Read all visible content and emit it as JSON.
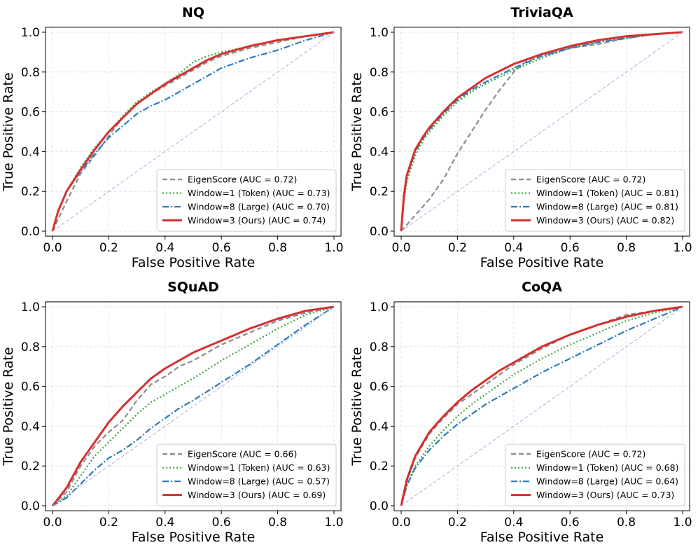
{
  "figure": {
    "xlabel": "False Positive Rate",
    "ylabel": "True Positive Rate"
  },
  "style": {
    "colors": {
      "eigenscore": "#8c8c8c",
      "window1": "#3aa83a",
      "window8": "#2b7bb9",
      "window3": "#d62f2f",
      "chance": "#a7a2e0",
      "grid": "#dcdcdc"
    }
  },
  "chart_data": [
    {
      "type": "line",
      "title": "NQ",
      "xlabel": "False Positive Rate",
      "ylabel": "True Positive Rate",
      "xlim": [
        0,
        1
      ],
      "ylim": [
        0,
        1
      ],
      "xticks": [
        "0.0",
        "0.2",
        "0.4",
        "0.6",
        "0.8",
        "1.0"
      ],
      "yticks": [
        "0.0",
        "0.2",
        "0.4",
        "0.6",
        "0.8",
        "1.0"
      ],
      "grid": true,
      "legend_position": "lower-right",
      "series": [
        {
          "key": "eigenscore",
          "name": "EigenScore (AUC = 0.72)",
          "style": "dashed",
          "x": [
            0,
            0.02,
            0.05,
            0.1,
            0.15,
            0.2,
            0.25,
            0.3,
            0.35,
            0.4,
            0.45,
            0.5,
            0.55,
            0.6,
            0.7,
            0.8,
            0.9,
            1.0
          ],
          "y": [
            0,
            0.06,
            0.15,
            0.29,
            0.38,
            0.48,
            0.57,
            0.64,
            0.69,
            0.73,
            0.77,
            0.81,
            0.85,
            0.88,
            0.92,
            0.95,
            0.98,
            1.0
          ]
        },
        {
          "key": "window1",
          "name": "Window=1 (Token) (AUC = 0.73)",
          "style": "dotted",
          "x": [
            0,
            0.02,
            0.05,
            0.1,
            0.15,
            0.2,
            0.25,
            0.3,
            0.35,
            0.4,
            0.45,
            0.5,
            0.55,
            0.6,
            0.7,
            0.8,
            0.9,
            1.0
          ],
          "y": [
            0,
            0.1,
            0.2,
            0.32,
            0.42,
            0.5,
            0.58,
            0.65,
            0.7,
            0.74,
            0.79,
            0.85,
            0.88,
            0.9,
            0.93,
            0.96,
            0.98,
            1.0
          ]
        },
        {
          "key": "window8",
          "name": "Window=8 (Large) (AUC = 0.70)",
          "style": "dashdot",
          "x": [
            0,
            0.02,
            0.05,
            0.1,
            0.15,
            0.2,
            0.25,
            0.3,
            0.35,
            0.4,
            0.45,
            0.5,
            0.55,
            0.6,
            0.7,
            0.8,
            0.9,
            1.0
          ],
          "y": [
            0,
            0.1,
            0.2,
            0.3,
            0.39,
            0.47,
            0.53,
            0.59,
            0.63,
            0.66,
            0.7,
            0.74,
            0.78,
            0.82,
            0.87,
            0.91,
            0.96,
            1.0
          ]
        },
        {
          "key": "window3",
          "name": "Window=3 (Ours) (AUC = 0.74)",
          "style": "solid",
          "x": [
            0,
            0.02,
            0.05,
            0.1,
            0.15,
            0.2,
            0.25,
            0.3,
            0.35,
            0.4,
            0.45,
            0.5,
            0.55,
            0.6,
            0.7,
            0.8,
            0.9,
            1.0
          ],
          "y": [
            0,
            0.1,
            0.2,
            0.31,
            0.41,
            0.5,
            0.57,
            0.64,
            0.69,
            0.74,
            0.78,
            0.82,
            0.86,
            0.89,
            0.93,
            0.96,
            0.98,
            1.0
          ]
        },
        {
          "key": "chance",
          "name": "",
          "style": "thin-dashed",
          "x": [
            0,
            1
          ],
          "y": [
            0,
            1
          ]
        }
      ]
    },
    {
      "type": "line",
      "title": "TriviaQA",
      "xlabel": "False Positive Rate",
      "ylabel": "True Positive Rate",
      "xlim": [
        0,
        1
      ],
      "ylim": [
        0,
        1
      ],
      "xticks": [
        "0.0",
        "0.2",
        "0.4",
        "0.6",
        "0.8",
        "1.0"
      ],
      "yticks": [
        "0.0",
        "0.2",
        "0.4",
        "0.6",
        "0.8",
        "1.0"
      ],
      "grid": true,
      "legend_position": "lower-right",
      "series": [
        {
          "key": "eigenscore",
          "name": "EigenScore (AUC = 0.72)",
          "style": "dashed",
          "x": [
            0,
            0.05,
            0.1,
            0.15,
            0.2,
            0.25,
            0.3,
            0.35,
            0.4,
            0.45,
            0.5,
            0.6,
            0.7,
            0.8,
            0.9,
            1.0
          ],
          "y": [
            0,
            0.08,
            0.16,
            0.26,
            0.39,
            0.5,
            0.61,
            0.71,
            0.8,
            0.86,
            0.88,
            0.92,
            0.94,
            0.97,
            0.99,
            1.0
          ]
        },
        {
          "key": "window1",
          "name": "Window=1 (Token) (AUC = 0.81)",
          "style": "dotted",
          "x": [
            0,
            0.01,
            0.02,
            0.05,
            0.08,
            0.1,
            0.15,
            0.2,
            0.25,
            0.3,
            0.4,
            0.5,
            0.6,
            0.7,
            0.8,
            0.9,
            1.0
          ],
          "y": [
            0,
            0.15,
            0.25,
            0.38,
            0.46,
            0.5,
            0.58,
            0.65,
            0.7,
            0.74,
            0.81,
            0.87,
            0.92,
            0.95,
            0.97,
            0.99,
            1.0
          ]
        },
        {
          "key": "window8",
          "name": "Window=8 (Large) (AUC = 0.81)",
          "style": "dashdot",
          "x": [
            0,
            0.01,
            0.02,
            0.05,
            0.08,
            0.1,
            0.15,
            0.2,
            0.25,
            0.3,
            0.4,
            0.5,
            0.6,
            0.7,
            0.8,
            0.9,
            1.0
          ],
          "y": [
            0,
            0.17,
            0.27,
            0.4,
            0.47,
            0.51,
            0.59,
            0.66,
            0.71,
            0.75,
            0.82,
            0.88,
            0.92,
            0.95,
            0.97,
            0.99,
            1.0
          ]
        },
        {
          "key": "window3",
          "name": "Window=3 (Ours) (AUC = 0.82)",
          "style": "solid",
          "x": [
            0,
            0.01,
            0.02,
            0.05,
            0.08,
            0.1,
            0.15,
            0.2,
            0.25,
            0.3,
            0.4,
            0.5,
            0.6,
            0.7,
            0.8,
            0.9,
            1.0
          ],
          "y": [
            0,
            0.18,
            0.28,
            0.41,
            0.48,
            0.52,
            0.6,
            0.67,
            0.72,
            0.77,
            0.84,
            0.89,
            0.93,
            0.96,
            0.98,
            0.99,
            1.0
          ]
        },
        {
          "key": "chance",
          "name": "",
          "style": "thin-dashed",
          "x": [
            0,
            1
          ],
          "y": [
            0,
            1
          ]
        }
      ]
    },
    {
      "type": "line",
      "title": "SQuAD",
      "xlabel": "False Positive Rate",
      "ylabel": "True Positive Rate",
      "xlim": [
        0,
        1
      ],
      "ylim": [
        0,
        1
      ],
      "xticks": [
        "0.0",
        "0.2",
        "0.4",
        "0.6",
        "0.8",
        "1.0"
      ],
      "yticks": [
        "0.0",
        "0.2",
        "0.4",
        "0.6",
        "0.8",
        "1.0"
      ],
      "grid": true,
      "legend_position": "lower-right",
      "series": [
        {
          "key": "eigenscore",
          "name": "EigenScore (AUC = 0.66)",
          "style": "dashed",
          "x": [
            0,
            0.05,
            0.1,
            0.15,
            0.2,
            0.25,
            0.3,
            0.35,
            0.4,
            0.45,
            0.5,
            0.6,
            0.7,
            0.8,
            0.9,
            1.0
          ],
          "y": [
            0,
            0.07,
            0.2,
            0.3,
            0.37,
            0.43,
            0.53,
            0.61,
            0.65,
            0.7,
            0.73,
            0.81,
            0.87,
            0.93,
            0.97,
            1.0
          ]
        },
        {
          "key": "window1",
          "name": "Window=1 (Token) (AUC = 0.63)",
          "style": "dotted",
          "x": [
            0,
            0.05,
            0.1,
            0.15,
            0.2,
            0.25,
            0.3,
            0.35,
            0.4,
            0.45,
            0.5,
            0.6,
            0.7,
            0.8,
            0.9,
            1.0
          ],
          "y": [
            0,
            0.05,
            0.15,
            0.25,
            0.32,
            0.39,
            0.46,
            0.52,
            0.56,
            0.6,
            0.64,
            0.73,
            0.81,
            0.89,
            0.96,
            1.0
          ]
        },
        {
          "key": "window8",
          "name": "Window=8 (Large) (AUC = 0.57)",
          "style": "dashdot",
          "x": [
            0,
            0.05,
            0.1,
            0.15,
            0.2,
            0.25,
            0.3,
            0.35,
            0.4,
            0.45,
            0.5,
            0.6,
            0.7,
            0.8,
            0.9,
            1.0
          ],
          "y": [
            0,
            0.04,
            0.11,
            0.18,
            0.24,
            0.28,
            0.33,
            0.39,
            0.44,
            0.49,
            0.53,
            0.62,
            0.71,
            0.81,
            0.91,
            1.0
          ]
        },
        {
          "key": "window3",
          "name": "Window=3 (Ours) (AUC = 0.69)",
          "style": "solid",
          "x": [
            0,
            0.05,
            0.1,
            0.15,
            0.2,
            0.25,
            0.3,
            0.35,
            0.4,
            0.45,
            0.5,
            0.6,
            0.7,
            0.8,
            0.9,
            1.0
          ],
          "y": [
            0,
            0.09,
            0.22,
            0.32,
            0.42,
            0.5,
            0.57,
            0.64,
            0.69,
            0.73,
            0.77,
            0.83,
            0.89,
            0.94,
            0.98,
            1.0
          ]
        },
        {
          "key": "chance",
          "name": "",
          "style": "thin-dashed",
          "x": [
            0,
            1
          ],
          "y": [
            0,
            1
          ]
        }
      ]
    },
    {
      "type": "line",
      "title": "CoQA",
      "xlabel": "False Positive Rate",
      "ylabel": "True Positive Rate",
      "xlim": [
        0,
        1
      ],
      "ylim": [
        0,
        1
      ],
      "xticks": [
        "0.0",
        "0.2",
        "0.4",
        "0.6",
        "0.8",
        "1.0"
      ],
      "yticks": [
        "0.0",
        "0.2",
        "0.4",
        "0.6",
        "0.8",
        "1.0"
      ],
      "grid": true,
      "legend_position": "lower-right",
      "series": [
        {
          "key": "eigenscore",
          "name": "EigenScore (AUC = 0.72)",
          "style": "dashed",
          "x": [
            0,
            0.02,
            0.05,
            0.1,
            0.15,
            0.2,
            0.25,
            0.3,
            0.35,
            0.4,
            0.5,
            0.6,
            0.7,
            0.8,
            0.9,
            1.0
          ],
          "y": [
            0,
            0.12,
            0.24,
            0.36,
            0.44,
            0.51,
            0.56,
            0.61,
            0.66,
            0.71,
            0.79,
            0.86,
            0.91,
            0.96,
            0.98,
            1.0
          ]
        },
        {
          "key": "window1",
          "name": "Window=1 (Token) (AUC = 0.68)",
          "style": "dotted",
          "x": [
            0,
            0.02,
            0.05,
            0.1,
            0.15,
            0.2,
            0.25,
            0.3,
            0.35,
            0.4,
            0.5,
            0.6,
            0.7,
            0.8,
            0.9,
            1.0
          ],
          "y": [
            0,
            0.1,
            0.2,
            0.3,
            0.38,
            0.45,
            0.51,
            0.56,
            0.61,
            0.66,
            0.74,
            0.81,
            0.87,
            0.93,
            0.97,
            1.0
          ]
        },
        {
          "key": "window8",
          "name": "Window=8 (Large) (AUC = 0.64)",
          "style": "dashdot",
          "x": [
            0,
            0.02,
            0.05,
            0.1,
            0.15,
            0.2,
            0.25,
            0.3,
            0.35,
            0.4,
            0.5,
            0.6,
            0.7,
            0.8,
            0.9,
            1.0
          ],
          "y": [
            0,
            0.1,
            0.19,
            0.28,
            0.35,
            0.41,
            0.46,
            0.51,
            0.55,
            0.59,
            0.67,
            0.74,
            0.81,
            0.88,
            0.94,
            1.0
          ]
        },
        {
          "key": "window3",
          "name": "Window=3 (Ours) (AUC = 0.73)",
          "style": "solid",
          "x": [
            0,
            0.02,
            0.05,
            0.1,
            0.15,
            0.2,
            0.25,
            0.3,
            0.35,
            0.4,
            0.5,
            0.6,
            0.7,
            0.8,
            0.9,
            1.0
          ],
          "y": [
            0,
            0.13,
            0.25,
            0.37,
            0.45,
            0.52,
            0.58,
            0.63,
            0.68,
            0.72,
            0.8,
            0.86,
            0.91,
            0.95,
            0.98,
            1.0
          ]
        },
        {
          "key": "chance",
          "name": "",
          "style": "thin-dashed",
          "x": [
            0,
            1
          ],
          "y": [
            0,
            1
          ]
        }
      ]
    }
  ]
}
